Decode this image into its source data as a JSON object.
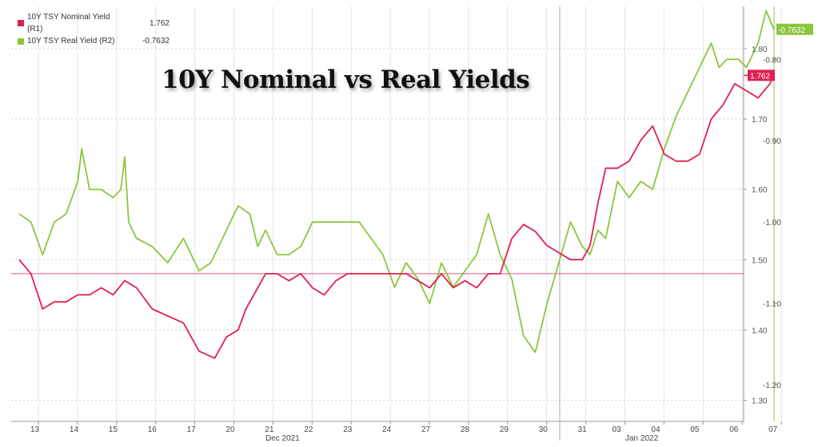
{
  "chart_data": {
    "type": "line",
    "title": "10Y Nominal vs Real Yields",
    "legend": [
      {
        "label": "10Y TSY Nominal Yield (R1)",
        "value": "1.762",
        "color": "#e0204f"
      },
      {
        "label": "10Y TSY Real Yield (R2)",
        "value": "-0.7632",
        "color": "#8cc63f"
      }
    ],
    "x_ticks": [
      "13",
      "14",
      "15",
      "16",
      "17",
      "20",
      "21",
      "22",
      "23",
      "24",
      "27",
      "28",
      "29",
      "30",
      "31",
      "03",
      "04",
      "05",
      "06",
      "07"
    ],
    "month_labels": [
      "Dec 2021",
      "Jan 2022"
    ],
    "axis_r1": {
      "ticks": [
        "1.80",
        "1.70",
        "1.60",
        "1.50",
        "1.40",
        "1.30"
      ],
      "range": [
        1.27,
        1.86
      ]
    },
    "axis_r2": {
      "ticks": [
        "-0.80",
        "-0.90",
        "-1.00",
        "-1.10",
        "-1.20"
      ],
      "range": [
        -1.245,
        -0.735
      ]
    },
    "reference_line_r1": 1.48,
    "last_value_tags": [
      {
        "text": "1.762",
        "color": "#e0204f"
      },
      {
        "text": "-0.7632",
        "color": "#8cc63f"
      }
    ],
    "series": [
      {
        "name": "10Y TSY Nominal Yield (R1)",
        "color": "#e0204f",
        "axis": "R1",
        "x": [
          0,
          0.3,
          0.6,
          0.9,
          1.2,
          1.5,
          1.8,
          2.1,
          2.4,
          2.7,
          3.0,
          3.4,
          3.8,
          4.2,
          4.6,
          5.0,
          5.3,
          5.6,
          5.8,
          6.0,
          6.3,
          6.6,
          6.9,
          7.2,
          7.5,
          7.8,
          8.1,
          8.4,
          8.7,
          9.0,
          9.3,
          9.6,
          9.9,
          10.2,
          10.5,
          10.8,
          11.1,
          11.4,
          11.7,
          12.0,
          12.3,
          12.6,
          12.9,
          13.2,
          13.5,
          13.8,
          14.1,
          14.4,
          14.6,
          14.8,
          15.0,
          15.3,
          15.6,
          15.9,
          16.2,
          16.5,
          16.8,
          17.1,
          17.4,
          17.7,
          18.0,
          18.3,
          18.6,
          18.9,
          19.2,
          19.3
        ],
        "y": [
          1.5,
          1.48,
          1.43,
          1.44,
          1.44,
          1.45,
          1.45,
          1.46,
          1.45,
          1.47,
          1.46,
          1.43,
          1.42,
          1.41,
          1.37,
          1.36,
          1.39,
          1.4,
          1.43,
          1.45,
          1.48,
          1.48,
          1.47,
          1.48,
          1.46,
          1.45,
          1.47,
          1.48,
          1.48,
          1.48,
          1.48,
          1.48,
          1.48,
          1.47,
          1.46,
          1.48,
          1.46,
          1.47,
          1.46,
          1.48,
          1.48,
          1.53,
          1.55,
          1.54,
          1.52,
          1.51,
          1.5,
          1.5,
          1.52,
          1.58,
          1.63,
          1.63,
          1.64,
          1.67,
          1.69,
          1.65,
          1.64,
          1.64,
          1.65,
          1.7,
          1.72,
          1.75,
          1.74,
          1.73,
          1.75,
          1.762
        ]
      },
      {
        "name": "10Y TSY Real Yield (R2)",
        "color": "#8cc63f",
        "axis": "R2",
        "x": [
          0,
          0.3,
          0.6,
          0.9,
          1.2,
          1.5,
          1.6,
          1.8,
          2.1,
          2.4,
          2.6,
          2.7,
          2.8,
          3.0,
          3.4,
          3.8,
          4.2,
          4.6,
          4.9,
          5.3,
          5.6,
          5.9,
          6.1,
          6.3,
          6.6,
          6.9,
          7.2,
          7.5,
          7.8,
          8.1,
          8.4,
          8.7,
          9.0,
          9.3,
          9.6,
          9.9,
          10.2,
          10.5,
          10.8,
          11.1,
          11.4,
          11.7,
          12.0,
          12.3,
          12.6,
          12.9,
          13.2,
          13.5,
          13.8,
          14.1,
          14.4,
          14.6,
          14.8,
          15.0,
          15.3,
          15.6,
          15.9,
          16.2,
          16.5,
          16.8,
          17.1,
          17.4,
          17.7,
          17.9,
          18.1,
          18.4,
          18.6,
          18.9,
          19.1,
          19.3
        ],
        "y": [
          -0.99,
          -1.0,
          -1.04,
          -1.0,
          -0.99,
          -0.95,
          -0.91,
          -0.96,
          -0.96,
          -0.97,
          -0.96,
          -0.92,
          -1.0,
          -1.02,
          -1.03,
          -1.05,
          -1.02,
          -1.06,
          -1.05,
          -1.01,
          -0.98,
          -0.99,
          -1.03,
          -1.01,
          -1.04,
          -1.04,
          -1.03,
          -1.0,
          -1.0,
          -1.0,
          -1.0,
          -1.0,
          -1.02,
          -1.04,
          -1.08,
          -1.05,
          -1.07,
          -1.1,
          -1.05,
          -1.08,
          -1.06,
          -1.04,
          -0.99,
          -1.04,
          -1.07,
          -1.14,
          -1.16,
          -1.1,
          -1.05,
          -1.0,
          -1.03,
          -1.04,
          -1.01,
          -1.02,
          -0.95,
          -0.97,
          -0.95,
          -0.96,
          -0.91,
          -0.87,
          -0.84,
          -0.81,
          -0.78,
          -0.81,
          -0.8,
          -0.8,
          -0.81,
          -0.78,
          -0.74,
          -0.7632
        ]
      }
    ]
  }
}
